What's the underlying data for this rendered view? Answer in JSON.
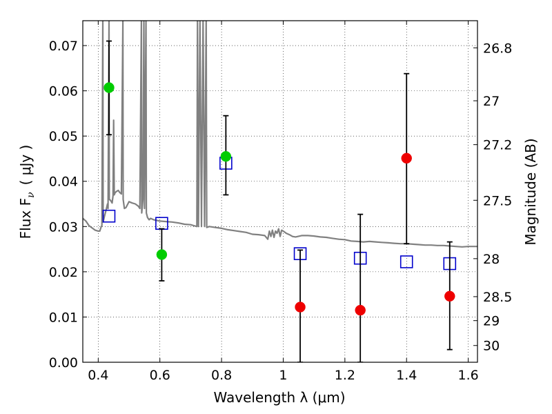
{
  "chart_data": {
    "type": "scatter",
    "xlabel": "Wavelength  λ (μm)",
    "ylabel": "Flux  F",
    "ylabel_subscript": "ν",
    "ylabel_unit": "( μJy )",
    "y2label": "Magnitude (AB)",
    "xlim": [
      0.35,
      1.63
    ],
    "ylim": [
      0.0,
      0.0755
    ],
    "grid": true,
    "x_ticks": [
      {
        "value": 0.4,
        "label": "0.4"
      },
      {
        "value": 0.6,
        "label": "0.6"
      },
      {
        "value": 0.8,
        "label": "0.8"
      },
      {
        "value": 1.0,
        "label": "1"
      },
      {
        "value": 1.2,
        "label": "1.2"
      },
      {
        "value": 1.4,
        "label": "1.4"
      },
      {
        "value": 1.6,
        "label": "1.6"
      }
    ],
    "y_ticks": [
      {
        "value": 0.0,
        "label": "0.00"
      },
      {
        "value": 0.01,
        "label": "0.01"
      },
      {
        "value": 0.02,
        "label": "0.02"
      },
      {
        "value": 0.03,
        "label": "0.03"
      },
      {
        "value": 0.04,
        "label": "0.04"
      },
      {
        "value": 0.05,
        "label": "0.05"
      },
      {
        "value": 0.06,
        "label": "0.06"
      },
      {
        "value": 0.07,
        "label": "0.07"
      }
    ],
    "y2_ticks": [
      {
        "flux": 0.0695,
        "label": "26.8"
      },
      {
        "flux": 0.0578,
        "label": "27"
      },
      {
        "flux": 0.0481,
        "label": "27.2"
      },
      {
        "flux": 0.0358,
        "label": "27.5"
      },
      {
        "flux": 0.0229,
        "label": "28"
      },
      {
        "flux": 0.0145,
        "label": "28.5"
      },
      {
        "flux": 0.0092,
        "label": "29"
      },
      {
        "flux": 0.0037,
        "label": "30"
      }
    ],
    "series": [
      {
        "kind": "model",
        "color": "#808080",
        "points": [
          [
            0.35,
            0.0318
          ],
          [
            0.36,
            0.0312
          ],
          [
            0.37,
            0.0302
          ],
          [
            0.38,
            0.0297
          ],
          [
            0.39,
            0.0292
          ],
          [
            0.4,
            0.029
          ],
          [
            0.405,
            0.029
          ],
          [
            0.41,
            0.03
          ],
          [
            0.412,
            0.0302
          ],
          [
            0.415,
            0.0755
          ],
          [
            0.416,
            0.031
          ],
          [
            0.42,
            0.0322
          ],
          [
            0.425,
            0.0335
          ],
          [
            0.43,
            0.035
          ],
          [
            0.432,
            0.034
          ],
          [
            0.435,
            0.0755
          ],
          [
            0.436,
            0.036
          ],
          [
            0.44,
            0.0358
          ],
          [
            0.445,
            0.0352
          ],
          [
            0.448,
            0.0368
          ],
          [
            0.45,
            0.0535
          ],
          [
            0.452,
            0.037
          ],
          [
            0.455,
            0.0375
          ],
          [
            0.46,
            0.0378
          ],
          [
            0.465,
            0.038
          ],
          [
            0.47,
            0.0375
          ],
          [
            0.475,
            0.0372
          ],
          [
            0.48,
            0.0755
          ],
          [
            0.481,
            0.036
          ],
          [
            0.485,
            0.034
          ],
          [
            0.49,
            0.0342
          ],
          [
            0.5,
            0.0355
          ],
          [
            0.51,
            0.0352
          ],
          [
            0.52,
            0.035
          ],
          [
            0.53,
            0.0345
          ],
          [
            0.535,
            0.034
          ],
          [
            0.54,
            0.0755
          ],
          [
            0.541,
            0.033
          ],
          [
            0.545,
            0.036
          ],
          [
            0.548,
            0.0755
          ],
          [
            0.55,
            0.034
          ],
          [
            0.555,
            0.0755
          ],
          [
            0.556,
            0.033
          ],
          [
            0.56,
            0.032
          ],
          [
            0.565,
            0.0315
          ],
          [
            0.57,
            0.0318
          ],
          [
            0.58,
            0.0315
          ],
          [
            0.6,
            0.0312
          ],
          [
            0.62,
            0.0311
          ],
          [
            0.64,
            0.031
          ],
          [
            0.66,
            0.0308
          ],
          [
            0.68,
            0.0305
          ],
          [
            0.7,
            0.0304
          ],
          [
            0.71,
            0.0302
          ],
          [
            0.72,
            0.03
          ],
          [
            0.722,
            0.0755
          ],
          [
            0.725,
            0.03
          ],
          [
            0.73,
            0.0755
          ],
          [
            0.735,
            0.03
          ],
          [
            0.74,
            0.0755
          ],
          [
            0.745,
            0.03
          ],
          [
            0.75,
            0.0755
          ],
          [
            0.752,
            0.0298
          ],
          [
            0.76,
            0.03
          ],
          [
            0.78,
            0.0298
          ],
          [
            0.8,
            0.0296
          ],
          [
            0.82,
            0.0293
          ],
          [
            0.84,
            0.0291
          ],
          [
            0.86,
            0.0289
          ],
          [
            0.88,
            0.0287
          ],
          [
            0.9,
            0.0283
          ],
          [
            0.92,
            0.0282
          ],
          [
            0.94,
            0.028
          ],
          [
            0.95,
            0.0272
          ],
          [
            0.955,
            0.029
          ],
          [
            0.96,
            0.0278
          ],
          [
            0.965,
            0.0292
          ],
          [
            0.97,
            0.0276
          ],
          [
            0.975,
            0.029
          ],
          [
            0.98,
            0.0285
          ],
          [
            0.985,
            0.0295
          ],
          [
            0.99,
            0.0278
          ],
          [
            0.995,
            0.0292
          ],
          [
            1.0,
            0.029
          ],
          [
            1.01,
            0.0285
          ],
          [
            1.02,
            0.0282
          ],
          [
            1.03,
            0.0278
          ],
          [
            1.04,
            0.0277
          ],
          [
            1.06,
            0.028
          ],
          [
            1.08,
            0.028
          ],
          [
            1.1,
            0.0279
          ],
          [
            1.12,
            0.0277
          ],
          [
            1.14,
            0.0276
          ],
          [
            1.16,
            0.0274
          ],
          [
            1.18,
            0.0272
          ],
          [
            1.2,
            0.0271
          ],
          [
            1.22,
            0.0268
          ],
          [
            1.24,
            0.0267
          ],
          [
            1.26,
            0.0266
          ],
          [
            1.28,
            0.0267
          ],
          [
            1.3,
            0.0266
          ],
          [
            1.32,
            0.0265
          ],
          [
            1.34,
            0.0264
          ],
          [
            1.36,
            0.0263
          ],
          [
            1.38,
            0.0262
          ],
          [
            1.4,
            0.0262
          ],
          [
            1.42,
            0.0261
          ],
          [
            1.44,
            0.026
          ],
          [
            1.46,
            0.0259
          ],
          [
            1.48,
            0.0259
          ],
          [
            1.5,
            0.0258
          ],
          [
            1.52,
            0.0258
          ],
          [
            1.54,
            0.0257
          ],
          [
            1.56,
            0.0256
          ],
          [
            1.58,
            0.0255
          ],
          [
            1.6,
            0.0256
          ],
          [
            1.63,
            0.0256
          ]
        ]
      },
      {
        "kind": "model_band_flux",
        "marker": "open-square",
        "color": "#0000cc",
        "points": [
          {
            "x": 0.435,
            "y": 0.0323
          },
          {
            "x": 0.606,
            "y": 0.0307
          },
          {
            "x": 0.814,
            "y": 0.044
          },
          {
            "x": 1.055,
            "y": 0.024
          },
          {
            "x": 1.25,
            "y": 0.023
          },
          {
            "x": 1.4,
            "y": 0.0222
          },
          {
            "x": 1.54,
            "y": 0.0218
          }
        ]
      },
      {
        "kind": "detections",
        "marker": "filled-circle",
        "color": "#00cc00",
        "points": [
          {
            "x": 0.435,
            "y": 0.0607,
            "err_low": 0.0503,
            "err_high": 0.071
          },
          {
            "x": 0.606,
            "y": 0.0238,
            "err_low": 0.018,
            "err_high": 0.0295
          },
          {
            "x": 0.814,
            "y": 0.0455,
            "err_low": 0.037,
            "err_high": 0.0545
          }
        ]
      },
      {
        "kind": "upper_limits",
        "marker": "filled-circle",
        "color": "#ee0000",
        "points": [
          {
            "x": 1.055,
            "y": 0.0122,
            "err_low": 0.0,
            "err_high": 0.0248
          },
          {
            "x": 1.25,
            "y": 0.0115,
            "err_low": 0.0,
            "err_high": 0.0327
          },
          {
            "x": 1.4,
            "y": 0.0451,
            "err_low": 0.0262,
            "err_high": 0.0638
          },
          {
            "x": 1.54,
            "y": 0.0146,
            "err_low": 0.0028,
            "err_high": 0.0266
          }
        ]
      }
    ]
  }
}
